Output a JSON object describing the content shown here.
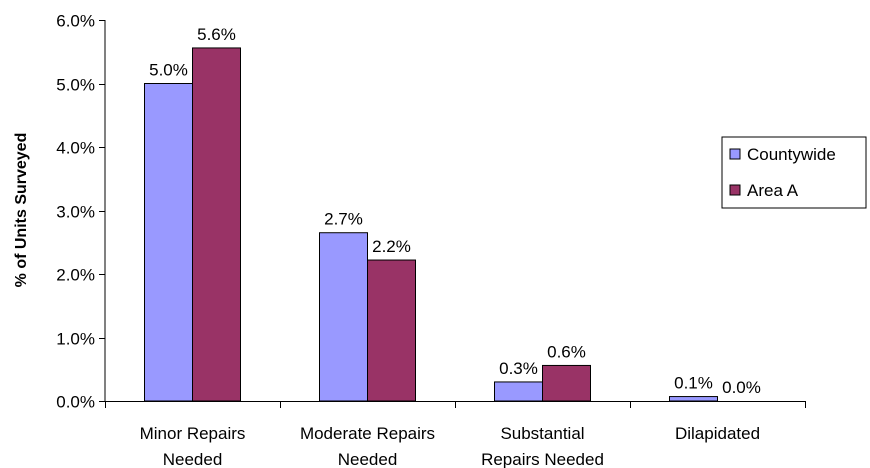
{
  "chart_data": {
    "type": "bar",
    "title": "",
    "xlabel": "",
    "ylabel": "% of Units Surveyed",
    "categories": [
      [
        "Minor Repairs",
        "Needed"
      ],
      [
        "Moderate Repairs",
        "Needed"
      ],
      [
        "Substantial",
        "Repairs Needed"
      ],
      [
        "Dilapidated"
      ]
    ],
    "series": [
      {
        "name": "Countywide",
        "color": "#9999ff",
        "values": [
          5.0,
          2.65,
          0.3,
          0.07
        ],
        "labels": [
          "5.0%",
          "2.7%",
          "0.3%",
          "0.1%"
        ]
      },
      {
        "name": "Area A",
        "color": "#993366",
        "values": [
          5.56,
          2.22,
          0.56,
          0.0
        ],
        "labels": [
          "5.6%",
          "2.2%",
          "0.6%",
          "0.0%"
        ]
      }
    ],
    "ylim": [
      0,
      6
    ],
    "yticks": [
      0,
      1,
      2,
      3,
      4,
      5,
      6
    ],
    "ytick_labels": [
      "0.0%",
      "1.0%",
      "2.0%",
      "3.0%",
      "4.0%",
      "5.0%",
      "6.0%"
    ],
    "grid": false,
    "legend_position": "right"
  }
}
